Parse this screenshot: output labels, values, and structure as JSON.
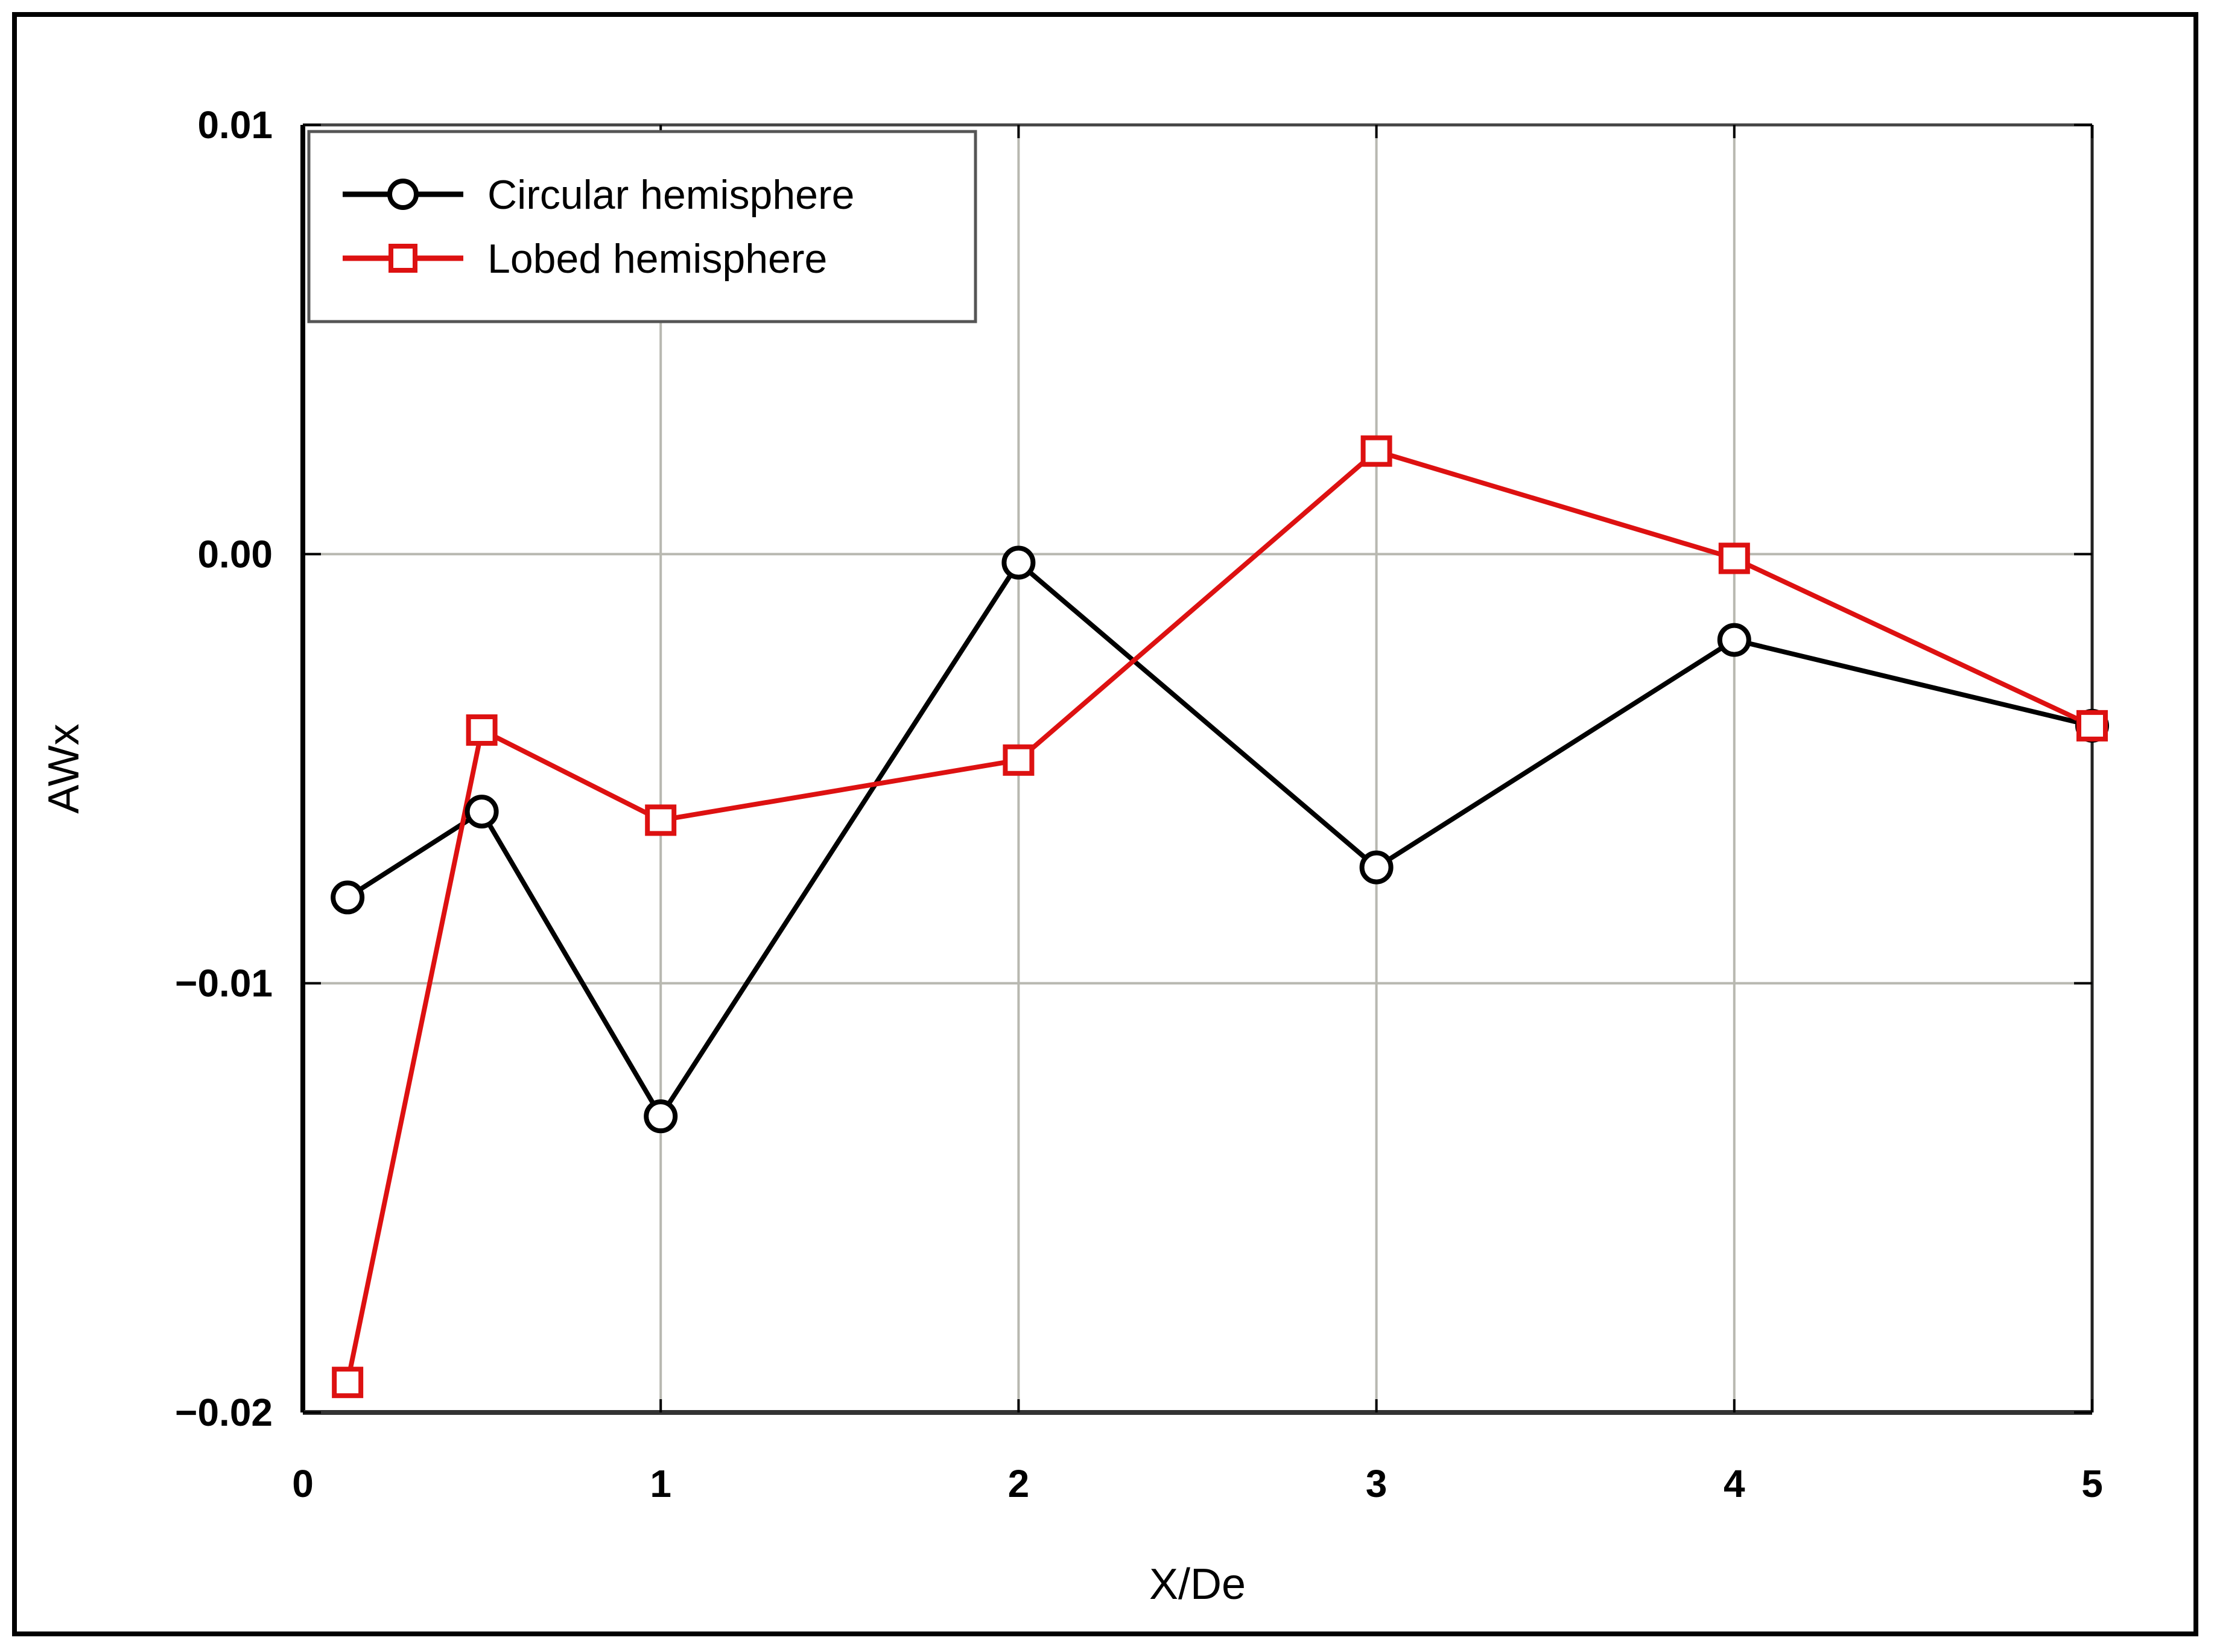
{
  "chart_data": {
    "type": "line",
    "title": "",
    "xlabel": "X/De",
    "ylabel": "AWx",
    "xlim": [
      0,
      5
    ],
    "ylim": [
      -0.02,
      0.01
    ],
    "x_ticks": [
      "0",
      "1",
      "2",
      "3",
      "4",
      "5"
    ],
    "y_ticks": [
      "0.01",
      "0.00",
      "−0.01",
      "−0.02"
    ],
    "grid": true,
    "legend_position": "upper left",
    "x": [
      0.125,
      0.5,
      1,
      2,
      3,
      4,
      5
    ],
    "series": [
      {
        "name": "Circular hemisphere",
        "color": "#000000",
        "marker": "circle",
        "values": [
          -0.008,
          -0.006,
          -0.0131,
          -0.0002,
          -0.0073,
          -0.002,
          -0.004
        ]
      },
      {
        "name": "Lobed hemisphere",
        "color": "#dd1111",
        "marker": "square",
        "values": [
          -0.0193,
          -0.0041,
          -0.0062,
          -0.0048,
          0.0024,
          -0.0001,
          -0.004
        ]
      }
    ]
  },
  "legend": {
    "items": [
      {
        "label": "Circular hemisphere"
      },
      {
        "label": "Lobed hemisphere"
      }
    ]
  },
  "axes": {
    "xlabel": "X/De",
    "ylabel": "AWx",
    "x_ticks": [
      "0",
      "1",
      "2",
      "3",
      "4",
      "5"
    ],
    "y_ticks": [
      "0.01",
      "0.00",
      "−0.01",
      "−0.02"
    ]
  }
}
